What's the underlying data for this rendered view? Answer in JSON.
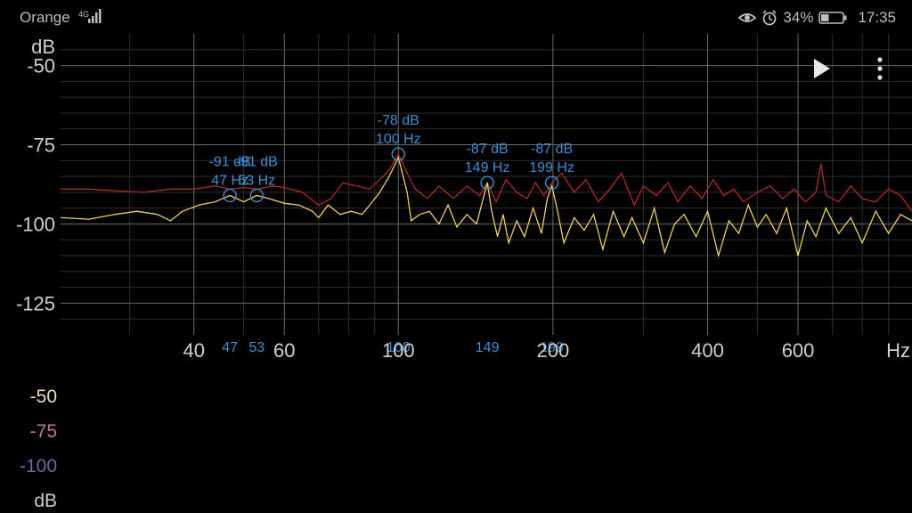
{
  "status_bar": {
    "carrier": "Orange",
    "battery": "34%",
    "time": "17:35",
    "icons": [
      "signal-icon",
      "eye-icon",
      "alarm-icon",
      "battery-icon"
    ]
  },
  "toolbar": {
    "play_icon": "play-icon",
    "more_icon": "more-vertical-icon"
  },
  "colors": {
    "peak_hold": "#b02a2a",
    "live": "#f0d060",
    "marker": "#3f8fd0",
    "grid_major": "#6a6a6a",
    "grid_minor": "#2e2e2e"
  },
  "chart_data": {
    "type": "line",
    "xscale": "log",
    "xlim": [
      22,
      1000
    ],
    "ylim": [
      -135,
      -40
    ],
    "x_unit": "Hz",
    "y_unit": "dB",
    "x_ticks": [
      {
        "value": 40,
        "label": "40"
      },
      {
        "value": 60,
        "label": "60"
      },
      {
        "value": 100,
        "label": "100"
      },
      {
        "value": 200,
        "label": "200"
      },
      {
        "value": 400,
        "label": "400"
      },
      {
        "value": 600,
        "label": "600"
      }
    ],
    "y_ticks": [
      {
        "value": -50,
        "label": "-50"
      },
      {
        "value": -75,
        "label": "-75"
      },
      {
        "value": -100,
        "label": "-100"
      },
      {
        "value": -125,
        "label": "-125"
      }
    ],
    "peaks": [
      {
        "freq": 47,
        "db": -91,
        "freq_label": "47 Hz",
        "db_label": "-91 dB",
        "axis_label": "47"
      },
      {
        "freq": 53,
        "db": -91,
        "freq_label": "53 Hz",
        "db_label": "-91 dB",
        "axis_label": "53"
      },
      {
        "freq": 100,
        "db": -78,
        "freq_label": "100 Hz",
        "db_label": "-78 dB",
        "axis_label": "100"
      },
      {
        "freq": 149,
        "db": -87,
        "freq_label": "149 Hz",
        "db_label": "-87 dB",
        "axis_label": "149"
      },
      {
        "freq": 199,
        "db": -87,
        "freq_label": "199 Hz",
        "db_label": "-87 dB",
        "axis_label": "199"
      }
    ],
    "series": [
      {
        "color": "#b02a2a",
        "points": [
          [
            22,
            -89
          ],
          [
            25,
            -89
          ],
          [
            28,
            -89.5
          ],
          [
            32,
            -90
          ],
          [
            36,
            -89
          ],
          [
            40,
            -89
          ],
          [
            44,
            -88
          ],
          [
            47,
            -89
          ],
          [
            50,
            -88.5
          ],
          [
            53,
            -89
          ],
          [
            57,
            -88
          ],
          [
            60,
            -88.5
          ],
          [
            65,
            -90
          ],
          [
            70,
            -94
          ],
          [
            74,
            -92
          ],
          [
            78,
            -87
          ],
          [
            83,
            -88
          ],
          [
            88,
            -89
          ],
          [
            92,
            -86
          ],
          [
            96,
            -83
          ],
          [
            100,
            -78
          ],
          [
            104,
            -84
          ],
          [
            108,
            -89
          ],
          [
            114,
            -92
          ],
          [
            120,
            -88
          ],
          [
            128,
            -92
          ],
          [
            136,
            -88
          ],
          [
            144,
            -91
          ],
          [
            149,
            -87
          ],
          [
            155,
            -93
          ],
          [
            162,
            -86
          ],
          [
            170,
            -90
          ],
          [
            178,
            -92
          ],
          [
            185,
            -87
          ],
          [
            192,
            -91
          ],
          [
            199,
            -87
          ],
          [
            208,
            -84
          ],
          [
            220,
            -90
          ],
          [
            232,
            -86
          ],
          [
            245,
            -93
          ],
          [
            258,
            -89
          ],
          [
            272,
            -84
          ],
          [
            288,
            -94
          ],
          [
            300,
            -88
          ],
          [
            318,
            -91
          ],
          [
            335,
            -87
          ],
          [
            350,
            -93
          ],
          [
            370,
            -88
          ],
          [
            390,
            -92
          ],
          [
            410,
            -86
          ],
          [
            430,
            -91
          ],
          [
            450,
            -89
          ],
          [
            470,
            -93
          ],
          [
            500,
            -90
          ],
          [
            530,
            -88
          ],
          [
            560,
            -92
          ],
          [
            590,
            -89
          ],
          [
            620,
            -93
          ],
          [
            650,
            -90
          ],
          [
            665,
            -81
          ],
          [
            680,
            -91
          ],
          [
            720,
            -93
          ],
          [
            760,
            -88
          ],
          [
            800,
            -92
          ],
          [
            850,
            -93
          ],
          [
            900,
            -89
          ],
          [
            950,
            -91
          ],
          [
            1000,
            -96
          ]
        ]
      },
      {
        "color": "#f0d060",
        "points": [
          [
            22,
            -98
          ],
          [
            25,
            -98.5
          ],
          [
            28,
            -97
          ],
          [
            31,
            -96
          ],
          [
            34,
            -97
          ],
          [
            36,
            -99
          ],
          [
            38,
            -96
          ],
          [
            41,
            -94
          ],
          [
            44,
            -93
          ],
          [
            47,
            -91
          ],
          [
            50,
            -93
          ],
          [
            53,
            -91
          ],
          [
            56,
            -92
          ],
          [
            60,
            -93.5
          ],
          [
            64,
            -94
          ],
          [
            68,
            -96
          ],
          [
            70,
            -98
          ],
          [
            73,
            -94
          ],
          [
            77,
            -97
          ],
          [
            81,
            -96
          ],
          [
            85,
            -97
          ],
          [
            88,
            -94
          ],
          [
            92,
            -90
          ],
          [
            96,
            -85
          ],
          [
            100,
            -79
          ],
          [
            104,
            -90
          ],
          [
            106,
            -99
          ],
          [
            110,
            -97
          ],
          [
            115,
            -96
          ],
          [
            120,
            -100
          ],
          [
            125,
            -94
          ],
          [
            130,
            -101
          ],
          [
            136,
            -97
          ],
          [
            142,
            -100
          ],
          [
            149,
            -87
          ],
          [
            152,
            -96
          ],
          [
            156,
            -104
          ],
          [
            160,
            -97
          ],
          [
            164,
            -106
          ],
          [
            170,
            -99
          ],
          [
            176,
            -104
          ],
          [
            183,
            -95
          ],
          [
            190,
            -103
          ],
          [
            195,
            -92
          ],
          [
            199,
            -88
          ],
          [
            203,
            -94
          ],
          [
            210,
            -106
          ],
          [
            220,
            -98
          ],
          [
            230,
            -102
          ],
          [
            240,
            -97
          ],
          [
            250,
            -108
          ],
          [
            262,
            -96
          ],
          [
            275,
            -104
          ],
          [
            285,
            -98
          ],
          [
            300,
            -106
          ],
          [
            315,
            -95
          ],
          [
            330,
            -109
          ],
          [
            345,
            -100
          ],
          [
            360,
            -97
          ],
          [
            380,
            -104
          ],
          [
            400,
            -96
          ],
          [
            420,
            -110
          ],
          [
            440,
            -99
          ],
          [
            460,
            -103
          ],
          [
            480,
            -94
          ],
          [
            500,
            -101
          ],
          [
            520,
            -97
          ],
          [
            545,
            -103
          ],
          [
            570,
            -95
          ],
          [
            600,
            -110
          ],
          [
            625,
            -99
          ],
          [
            650,
            -104
          ],
          [
            680,
            -95
          ],
          [
            720,
            -103
          ],
          [
            760,
            -98
          ],
          [
            800,
            -106
          ],
          [
            850,
            -96
          ],
          [
            900,
            -103
          ],
          [
            950,
            -97
          ],
          [
            1000,
            -99
          ]
        ]
      }
    ]
  },
  "waterfall_scale": {
    "labels": [
      {
        "text": "-50",
        "color": "#e8dcc0"
      },
      {
        "text": "-75",
        "color": "#c07c88"
      },
      {
        "text": "-100",
        "color": "#6a6aa8"
      },
      {
        "text": "dB",
        "color": "#cfcfcf"
      }
    ]
  }
}
